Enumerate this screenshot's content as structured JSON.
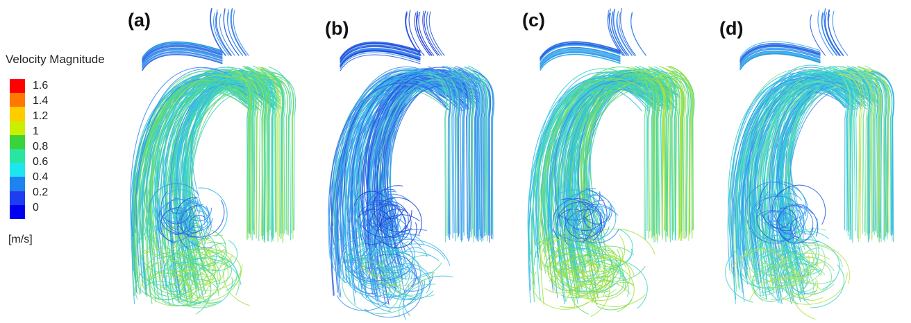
{
  "legend": {
    "title": "Velocity Magnitude",
    "unit": "[m/s]",
    "ticks": [
      "1.6",
      "1.4",
      "1.2",
      "1",
      "0.8",
      "0.6",
      "0.4",
      "0.2",
      "0"
    ],
    "colors": [
      "#ff0000",
      "#ff7800",
      "#ffcc00",
      "#c8f000",
      "#3cd23c",
      "#28e6a0",
      "#1ee6f0",
      "#1e82f0",
      "#1e3cf0",
      "#0000f0"
    ]
  },
  "panels": [
    {
      "label": "(a)",
      "palette": [
        "#2a5fe0",
        "#3c8cf0",
        "#35b8e8",
        "#39d6c8",
        "#5cd880",
        "#9ee24a"
      ],
      "bias": 0.55
    },
    {
      "label": "(b)",
      "palette": [
        "#1f3fd8",
        "#2a5fe0",
        "#3c8cf0",
        "#35b8e8",
        "#5ed6b0",
        "#b6e23a"
      ],
      "bias": 0.25
    },
    {
      "label": "(c)",
      "palette": [
        "#2a5fe0",
        "#3c8cf0",
        "#35b8e8",
        "#39d6c8",
        "#5cd880",
        "#a6e03c"
      ],
      "bias": 0.6
    },
    {
      "label": "(d)",
      "palette": [
        "#2a5fe0",
        "#3c8cf0",
        "#35b8e8",
        "#39d6c8",
        "#7ce0a0",
        "#b8e24a"
      ],
      "bias": 0.4
    }
  ]
}
